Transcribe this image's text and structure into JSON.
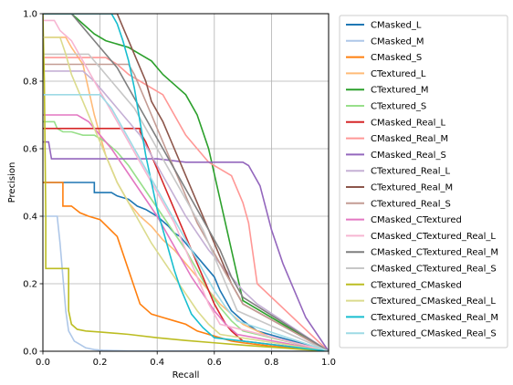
{
  "chart_data": {
    "type": "line",
    "xlabel": "Recall",
    "ylabel": "Precision",
    "xlim": [
      0.0,
      1.0
    ],
    "ylim": [
      0.0,
      1.0
    ],
    "xticks": [
      "0.0",
      "0.2",
      "0.4",
      "0.6",
      "0.8",
      "1.0"
    ],
    "yticks": [
      "0.0",
      "0.2",
      "0.4",
      "0.6",
      "0.8",
      "1.0"
    ],
    "grid": true,
    "legend_position": "outside-right",
    "series": [
      {
        "name": "CMasked_L",
        "color": "#1f77b4",
        "x": [
          0.0,
          0.06,
          0.09,
          0.09,
          0.18,
          0.18,
          0.24,
          0.26,
          0.3,
          0.33,
          0.36,
          0.4,
          0.44,
          0.46,
          0.48,
          0.5,
          0.52,
          0.54,
          0.56,
          0.58,
          0.6,
          0.62,
          0.64,
          0.66,
          0.7,
          0.75,
          1.0
        ],
        "y": [
          0.5,
          0.5,
          0.5,
          0.5,
          0.5,
          0.47,
          0.47,
          0.46,
          0.45,
          0.43,
          0.42,
          0.4,
          0.37,
          0.35,
          0.34,
          0.32,
          0.3,
          0.28,
          0.26,
          0.24,
          0.22,
          0.18,
          0.15,
          0.12,
          0.09,
          0.06,
          0.0
        ]
      },
      {
        "name": "CMasked_M",
        "color": "#aec7e8",
        "x": [
          0.0,
          0.05,
          0.06,
          0.07,
          0.08,
          0.09,
          0.11,
          0.13,
          0.15,
          0.18,
          0.21,
          0.25,
          0.3,
          1.0
        ],
        "y": [
          0.4,
          0.4,
          0.32,
          0.22,
          0.12,
          0.06,
          0.03,
          0.02,
          0.01,
          0.005,
          0.003,
          0.002,
          0.001,
          0.0
        ]
      },
      {
        "name": "CMasked_S",
        "color": "#ff7f0e",
        "x": [
          0.0,
          0.07,
          0.07,
          0.1,
          0.13,
          0.16,
          0.2,
          0.26,
          0.3,
          0.34,
          0.38,
          0.42,
          0.46,
          0.5,
          0.54,
          0.58,
          0.62,
          0.66,
          0.7,
          0.8,
          1.0
        ],
        "y": [
          0.5,
          0.5,
          0.43,
          0.43,
          0.41,
          0.4,
          0.39,
          0.34,
          0.24,
          0.14,
          0.11,
          0.1,
          0.09,
          0.08,
          0.06,
          0.05,
          0.04,
          0.03,
          0.025,
          0.015,
          0.0
        ]
      },
      {
        "name": "CTextured_L",
        "color": "#ffbb78",
        "x": [
          0.0,
          0.08,
          0.1,
          0.14,
          0.18,
          0.22,
          0.26,
          0.3,
          0.34,
          0.38,
          0.42,
          0.46,
          0.5,
          0.54,
          0.58,
          0.62,
          0.66,
          0.7,
          0.75,
          0.8,
          1.0
        ],
        "y": [
          0.93,
          0.93,
          0.9,
          0.85,
          0.7,
          0.58,
          0.5,
          0.44,
          0.4,
          0.37,
          0.33,
          0.3,
          0.26,
          0.22,
          0.18,
          0.14,
          0.11,
          0.08,
          0.06,
          0.04,
          0.0
        ]
      },
      {
        "name": "CTextured_M",
        "color": "#2ca02c",
        "x": [
          0.0,
          0.1,
          0.14,
          0.18,
          0.22,
          0.26,
          0.3,
          0.34,
          0.38,
          0.42,
          0.46,
          0.5,
          0.54,
          0.58,
          0.62,
          0.66,
          0.7,
          1.0
        ],
        "y": [
          1.0,
          1.0,
          0.97,
          0.94,
          0.92,
          0.91,
          0.9,
          0.88,
          0.86,
          0.82,
          0.79,
          0.76,
          0.7,
          0.6,
          0.45,
          0.3,
          0.15,
          0.0
        ]
      },
      {
        "name": "CTextured_S",
        "color": "#98df8a",
        "x": [
          0.0,
          0.04,
          0.05,
          0.07,
          0.1,
          0.14,
          0.18,
          0.22,
          0.26,
          0.3,
          0.34,
          0.38,
          0.42,
          0.46,
          0.5,
          0.54,
          0.58,
          0.62,
          0.66,
          0.7,
          1.0
        ],
        "y": [
          0.68,
          0.68,
          0.66,
          0.65,
          0.65,
          0.64,
          0.64,
          0.62,
          0.59,
          0.55,
          0.5,
          0.45,
          0.4,
          0.35,
          0.3,
          0.24,
          0.18,
          0.13,
          0.09,
          0.06,
          0.0
        ]
      },
      {
        "name": "CMasked_Real_L",
        "color": "#d62728",
        "x": [
          0.0,
          0.34,
          0.34,
          0.36,
          0.38,
          0.4,
          0.42,
          0.44,
          0.46,
          0.48,
          0.5,
          0.52,
          0.54,
          0.56,
          0.58,
          0.6,
          0.62,
          0.64,
          0.66,
          0.7,
          1.0
        ],
        "y": [
          0.66,
          0.66,
          0.65,
          0.62,
          0.58,
          0.54,
          0.5,
          0.46,
          0.42,
          0.38,
          0.34,
          0.3,
          0.26,
          0.22,
          0.18,
          0.14,
          0.11,
          0.08,
          0.06,
          0.03,
          0.0
        ]
      },
      {
        "name": "CMasked_Real_M",
        "color": "#ff9896",
        "x": [
          0.0,
          0.22,
          0.26,
          0.3,
          0.34,
          0.38,
          0.42,
          0.46,
          0.5,
          0.54,
          0.58,
          0.62,
          0.66,
          0.7,
          0.72,
          0.75,
          1.0
        ],
        "y": [
          0.87,
          0.87,
          0.85,
          0.82,
          0.8,
          0.78,
          0.76,
          0.7,
          0.64,
          0.6,
          0.56,
          0.54,
          0.52,
          0.44,
          0.38,
          0.2,
          0.0
        ]
      },
      {
        "name": "CMasked_Real_S",
        "color": "#9467bd",
        "x": [
          0.0,
          0.02,
          0.03,
          0.06,
          0.1,
          0.2,
          0.3,
          0.4,
          0.5,
          0.6,
          0.7,
          0.72,
          0.76,
          0.8,
          0.84,
          0.88,
          0.92,
          1.0
        ],
        "y": [
          0.62,
          0.62,
          0.57,
          0.57,
          0.57,
          0.57,
          0.57,
          0.57,
          0.56,
          0.56,
          0.56,
          0.55,
          0.49,
          0.36,
          0.26,
          0.18,
          0.1,
          0.0
        ]
      },
      {
        "name": "CTextured_Real_L",
        "color": "#c5b0d5",
        "x": [
          0.0,
          0.14,
          0.18,
          0.22,
          0.26,
          0.3,
          0.34,
          0.38,
          0.42,
          0.46,
          0.5,
          0.54,
          0.58,
          0.62,
          0.66,
          0.7,
          0.75,
          1.0
        ],
        "y": [
          0.83,
          0.83,
          0.8,
          0.76,
          0.72,
          0.68,
          0.64,
          0.58,
          0.52,
          0.46,
          0.4,
          0.35,
          0.3,
          0.26,
          0.22,
          0.18,
          0.14,
          0.0
        ]
      },
      {
        "name": "CTextured_Real_M",
        "color": "#8c564b",
        "x": [
          0.0,
          0.26,
          0.28,
          0.3,
          0.32,
          0.34,
          0.36,
          0.38,
          0.42,
          0.46,
          0.5,
          0.54,
          0.58,
          0.62,
          0.66,
          0.7,
          1.0
        ],
        "y": [
          1.0,
          1.0,
          0.96,
          0.92,
          0.88,
          0.84,
          0.8,
          0.74,
          0.68,
          0.6,
          0.52,
          0.44,
          0.36,
          0.28,
          0.2,
          0.14,
          0.0
        ]
      },
      {
        "name": "CTextured_Real_S",
        "color": "#c49c94",
        "x": [
          0.0,
          0.3,
          0.32,
          0.34,
          0.36,
          0.38,
          0.4,
          0.42,
          0.44,
          0.46,
          0.48,
          0.5,
          0.52,
          0.54,
          0.58,
          0.62,
          0.66,
          0.7,
          1.0
        ],
        "y": [
          0.85,
          0.85,
          0.82,
          0.78,
          0.74,
          0.7,
          0.66,
          0.62,
          0.58,
          0.54,
          0.5,
          0.46,
          0.42,
          0.38,
          0.32,
          0.26,
          0.2,
          0.14,
          0.0
        ]
      },
      {
        "name": "CMasked_CTextured",
        "color": "#e377c2",
        "x": [
          0.0,
          0.12,
          0.16,
          0.2,
          0.24,
          0.28,
          0.32,
          0.36,
          0.4,
          0.44,
          0.48,
          0.52,
          0.56,
          0.6,
          0.64,
          0.68,
          1.0
        ],
        "y": [
          0.7,
          0.7,
          0.68,
          0.64,
          0.6,
          0.55,
          0.5,
          0.45,
          0.4,
          0.34,
          0.28,
          0.22,
          0.17,
          0.12,
          0.08,
          0.05,
          0.0
        ]
      },
      {
        "name": "CMasked_CTextured_Real_L",
        "color": "#f7b6d2",
        "x": [
          0.0,
          0.04,
          0.06,
          0.1,
          0.14,
          0.18,
          0.22,
          0.26,
          0.3,
          0.34,
          0.38,
          0.42,
          0.46,
          0.5,
          0.54,
          0.58,
          0.62,
          1.0
        ],
        "y": [
          0.98,
          0.98,
          0.95,
          0.92,
          0.86,
          0.8,
          0.74,
          0.68,
          0.62,
          0.56,
          0.5,
          0.44,
          0.38,
          0.3,
          0.22,
          0.14,
          0.08,
          0.0
        ]
      },
      {
        "name": "CMasked_CTextured_Real_M",
        "color": "#7f7f7f",
        "x": [
          0.0,
          0.1,
          0.14,
          0.18,
          0.22,
          0.26,
          0.3,
          0.34,
          0.38,
          0.42,
          0.46,
          0.5,
          0.54,
          0.58,
          0.62,
          0.66,
          0.7,
          1.0
        ],
        "y": [
          1.0,
          1.0,
          0.96,
          0.92,
          0.88,
          0.84,
          0.78,
          0.72,
          0.66,
          0.6,
          0.54,
          0.48,
          0.42,
          0.36,
          0.3,
          0.22,
          0.16,
          0.0
        ]
      },
      {
        "name": "CMasked_CTextured_Real_S",
        "color": "#c7c7c7",
        "x": [
          0.0,
          0.16,
          0.2,
          0.24,
          0.28,
          0.32,
          0.36,
          0.4,
          0.44,
          0.48,
          0.52,
          0.56,
          0.6,
          0.64,
          0.68,
          1.0
        ],
        "y": [
          0.88,
          0.88,
          0.84,
          0.8,
          0.76,
          0.72,
          0.66,
          0.6,
          0.54,
          0.48,
          0.42,
          0.36,
          0.28,
          0.2,
          0.12,
          0.0
        ]
      },
      {
        "name": "CTextured_CMasked",
        "color": "#bcbd22",
        "x": [
          0.0,
          0.005,
          0.01,
          0.01,
          0.09,
          0.09,
          0.1,
          0.12,
          0.15,
          0.2,
          0.3,
          0.4,
          0.5,
          0.6,
          0.7,
          0.8,
          0.9,
          1.0
        ],
        "y": [
          1.0,
          0.8,
          0.4,
          0.245,
          0.245,
          0.12,
          0.08,
          0.065,
          0.06,
          0.057,
          0.05,
          0.04,
          0.032,
          0.025,
          0.018,
          0.012,
          0.006,
          0.0
        ]
      },
      {
        "name": "CTextured_CMasked_Real_L",
        "color": "#dbdb8d",
        "x": [
          0.0,
          0.06,
          0.08,
          0.1,
          0.14,
          0.18,
          0.22,
          0.26,
          0.3,
          0.34,
          0.38,
          0.42,
          0.46,
          0.5,
          0.54,
          0.58,
          0.62,
          1.0
        ],
        "y": [
          0.93,
          0.93,
          0.88,
          0.82,
          0.74,
          0.66,
          0.58,
          0.5,
          0.44,
          0.38,
          0.32,
          0.27,
          0.22,
          0.17,
          0.12,
          0.08,
          0.05,
          0.0
        ]
      },
      {
        "name": "CTextured_CMasked_Real_M",
        "color": "#17becf",
        "x": [
          0.0,
          0.24,
          0.26,
          0.28,
          0.3,
          0.32,
          0.34,
          0.36,
          0.38,
          0.4,
          0.42,
          0.44,
          0.46,
          0.48,
          0.5,
          0.52,
          0.56,
          0.6,
          1.0
        ],
        "y": [
          1.0,
          1.0,
          0.97,
          0.92,
          0.86,
          0.78,
          0.68,
          0.58,
          0.5,
          0.42,
          0.36,
          0.3,
          0.24,
          0.19,
          0.15,
          0.11,
          0.07,
          0.04,
          0.0
        ]
      },
      {
        "name": "CTextured_CMasked_Real_S",
        "color": "#9edae5",
        "x": [
          0.0,
          0.2,
          0.24,
          0.28,
          0.32,
          0.36,
          0.4,
          0.44,
          0.48,
          0.52,
          0.56,
          0.6,
          0.64,
          0.68,
          1.0
        ],
        "y": [
          0.76,
          0.76,
          0.72,
          0.66,
          0.6,
          0.54,
          0.48,
          0.42,
          0.36,
          0.3,
          0.24,
          0.18,
          0.13,
          0.09,
          0.0
        ]
      }
    ]
  }
}
